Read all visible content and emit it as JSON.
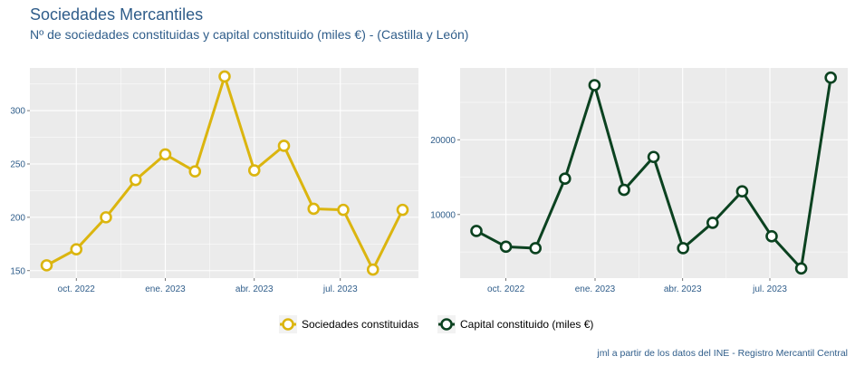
{
  "title": "Sociedades Mercantiles",
  "subtitle": "Nº de sociedades constituidas y capital constituido (miles €) - (Castilla y León)",
  "caption": "jml a partir de los datos del INE - Registro Mercantil Central",
  "colors": {
    "series1": "#dbb50f",
    "series2": "#0b4220",
    "panel_bg": "#ebebeb",
    "grid": "#ffffff",
    "text": "#2f5d8a"
  },
  "legend": {
    "items": [
      {
        "label": "Sociedades constituidas"
      },
      {
        "label": "Capital constituido (miles €)"
      }
    ]
  },
  "chart_data": [
    {
      "type": "line",
      "x": [
        "2022-09",
        "2022-10",
        "2022-11",
        "2022-12",
        "2023-01",
        "2023-02",
        "2023-03",
        "2023-04",
        "2023-05",
        "2023-06",
        "2023-07",
        "2023-08",
        "2023-09"
      ],
      "series": [
        {
          "name": "Sociedades constituidas",
          "values": [
            155,
            170,
            200,
            235,
            259,
            243,
            332,
            244,
            267,
            208,
            207,
            151,
            207
          ]
        }
      ],
      "x_ticks": [
        "oct. 2022",
        "ene. 2023",
        "abr. 2023",
        "jul. 2023"
      ],
      "y_ticks": [
        150,
        200,
        250,
        300
      ],
      "ylim": [
        143,
        340
      ],
      "grid": true
    },
    {
      "type": "line",
      "x": [
        "2022-09",
        "2022-10",
        "2022-11",
        "2022-12",
        "2023-01",
        "2023-02",
        "2023-03",
        "2023-04",
        "2023-05",
        "2023-06",
        "2023-07",
        "2023-08",
        "2023-09"
      ],
      "series": [
        {
          "name": "Capital constituido (miles €)",
          "values": [
            7800,
            5700,
            5500,
            14800,
            27300,
            13300,
            17700,
            5500,
            8900,
            13100,
            7100,
            2800,
            28300
          ]
        }
      ],
      "x_ticks": [
        "oct. 2022",
        "ene. 2023",
        "abr. 2023",
        "jul. 2023"
      ],
      "y_ticks": [
        10000,
        20000
      ],
      "ylim": [
        1500,
        29600
      ],
      "grid": true
    }
  ]
}
